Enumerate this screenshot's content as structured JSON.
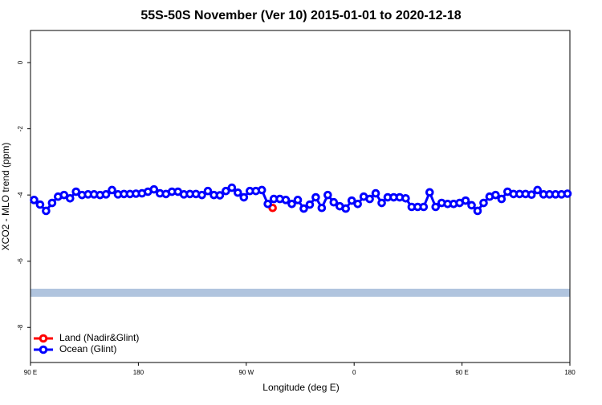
{
  "chart_data": {
    "type": "line",
    "title": "55S-50S November (Ver 10)   2015-01-01 to 2020-12-18",
    "x_label": "Longitude (deg E)",
    "y_label": "XCO2 - MLO trend (ppm)",
    "xlim": [
      90,
      540
    ],
    "ylim": [
      -9.06,
      0.97
    ],
    "xticks": [
      {
        "value": 90,
        "label": "90 E"
      },
      {
        "value": 180,
        "label": "180"
      },
      {
        "value": 270,
        "label": "90 W"
      },
      {
        "value": 360,
        "label": "0"
      },
      {
        "value": 450,
        "label": "90 E"
      },
      {
        "value": 540,
        "label": "180"
      }
    ],
    "yticks": [
      0,
      -2,
      -4,
      -6,
      -8
    ],
    "legend": "bottom-left",
    "series": [
      {
        "name": "Land (Nadir&Glint)",
        "color": "#ff0000",
        "x": [
          292
        ],
        "values": [
          -4.39
        ]
      },
      {
        "name": "Ocean (Glint)",
        "color": "#0000ff",
        "x": [
          93,
          98,
          103,
          108,
          113,
          118,
          123,
          128,
          133,
          138,
          143,
          148,
          153,
          158,
          163,
          168,
          173,
          178,
          183,
          188,
          193,
          198,
          203,
          208,
          213,
          218,
          223,
          228,
          233,
          238,
          243,
          248,
          253,
          258,
          263,
          268,
          273,
          278,
          283,
          288,
          293,
          298,
          303,
          308,
          313,
          318,
          323,
          328,
          333,
          338,
          343,
          348,
          353,
          358,
          363,
          368,
          373,
          378,
          383,
          388,
          393,
          398,
          403,
          408,
          413,
          418,
          423,
          428,
          433,
          438,
          443,
          448,
          453,
          458,
          463,
          468,
          473,
          478,
          483,
          488,
          493,
          498,
          503,
          508,
          513,
          518,
          523,
          528,
          533,
          538
        ],
        "values": [
          -4.15,
          -4.29,
          -4.48,
          -4.24,
          -4.05,
          -4.0,
          -4.1,
          -3.9,
          -4.0,
          -3.98,
          -3.98,
          -4.0,
          -3.98,
          -3.85,
          -3.98,
          -3.97,
          -3.97,
          -3.96,
          -3.95,
          -3.9,
          -3.83,
          -3.95,
          -3.97,
          -3.9,
          -3.9,
          -3.98,
          -3.97,
          -3.97,
          -4.0,
          -3.88,
          -4.0,
          -4.01,
          -3.88,
          -3.78,
          -3.93,
          -4.07,
          -3.88,
          -3.88,
          -3.85,
          -4.27,
          -4.12,
          -4.12,
          -4.15,
          -4.27,
          -4.15,
          -4.41,
          -4.29,
          -4.07,
          -4.39,
          -4.0,
          -4.22,
          -4.34,
          -4.41,
          -4.17,
          -4.27,
          -4.05,
          -4.12,
          -3.95,
          -4.24,
          -4.07,
          -4.07,
          -4.07,
          -4.1,
          -4.36,
          -4.36,
          -4.36,
          -3.92,
          -4.36,
          -4.24,
          -4.27,
          -4.27,
          -4.24,
          -4.17,
          -4.31,
          -4.48,
          -4.24,
          -4.05,
          -4.0,
          -4.12,
          -3.9,
          -3.97,
          -3.97,
          -3.97,
          -3.99,
          -3.85,
          -3.98,
          -3.98,
          -3.98,
          -3.98,
          -3.96
        ]
      }
    ]
  }
}
